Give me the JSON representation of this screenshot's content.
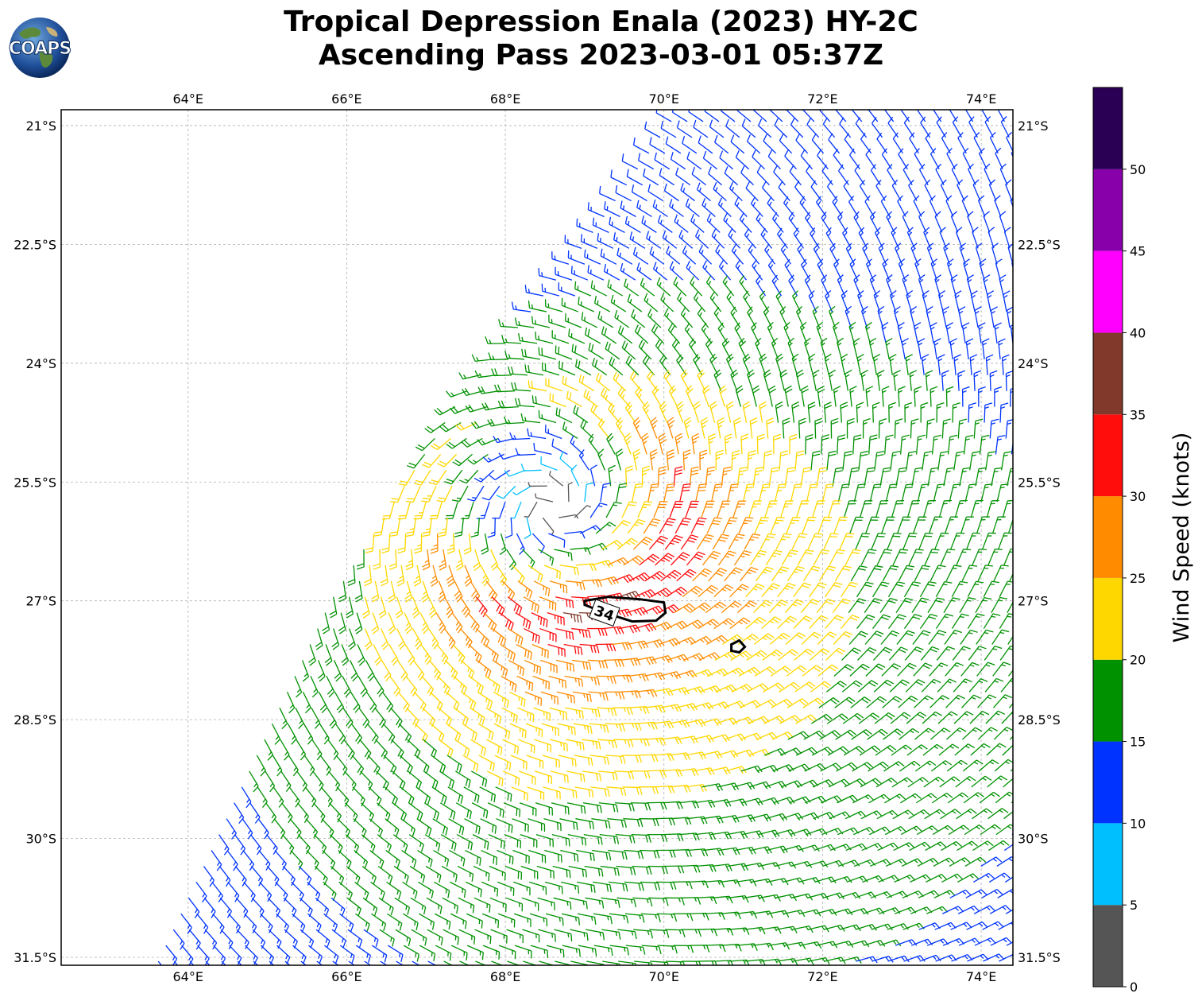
{
  "title": {
    "line1": "Tropical Depression Enala (2023) HY-2C",
    "line2": "Ascending Pass 2023-03-01 05:37Z"
  },
  "logo": {
    "text": "COAPS",
    "icon": "globe-icon"
  },
  "map": {
    "lon_range": [
      62.4,
      74.4
    ],
    "lat_range": [
      -31.6,
      -20.8
    ],
    "lon_ticks": [
      {
        "v": 64,
        "label": "64°E"
      },
      {
        "v": 66,
        "label": "66°E"
      },
      {
        "v": 68,
        "label": "68°E"
      },
      {
        "v": 70,
        "label": "70°E"
      },
      {
        "v": 72,
        "label": "72°E"
      },
      {
        "v": 74,
        "label": "74°E"
      }
    ],
    "lat_ticks": [
      {
        "v": -21,
        "label": "21°S"
      },
      {
        "v": -22.5,
        "label": "22.5°S"
      },
      {
        "v": -24,
        "label": "24°S"
      },
      {
        "v": -25.5,
        "label": "25.5°S"
      },
      {
        "v": -27,
        "label": "27°S"
      },
      {
        "v": -28.5,
        "label": "28.5°S"
      },
      {
        "v": -30,
        "label": "30°S"
      },
      {
        "v": -31.5,
        "label": "31.5°S"
      }
    ],
    "gridlines": true,
    "storm_center": {
      "lon": 68.6,
      "lat": -25.8
    },
    "swath_west_edge": [
      [
        70.2,
        -20.8
      ],
      [
        69.0,
        -22.5
      ],
      [
        67.4,
        -24.5
      ],
      [
        65.8,
        -27.0
      ],
      [
        63.6,
        -31.6
      ]
    ],
    "contour_34kt": {
      "label": "34",
      "polygons": [
        [
          [
            69.0,
            -27.0
          ],
          [
            69.3,
            -26.95
          ],
          [
            69.7,
            -26.98
          ],
          [
            70.0,
            -27.02
          ],
          [
            70.02,
            -27.15
          ],
          [
            69.9,
            -27.25
          ],
          [
            69.6,
            -27.26
          ],
          [
            69.25,
            -27.15
          ],
          [
            69.0,
            -27.05
          ]
        ],
        [
          [
            70.85,
            -27.55
          ],
          [
            70.95,
            -27.5
          ],
          [
            71.02,
            -27.58
          ],
          [
            70.95,
            -27.65
          ],
          [
            70.85,
            -27.63
          ]
        ]
      ]
    }
  },
  "colorbar": {
    "label": "Wind Speed (knots)",
    "bins": [
      {
        "from": 0,
        "to": 5,
        "color": "#555555"
      },
      {
        "from": 5,
        "to": 10,
        "color": "#00bfff"
      },
      {
        "from": 10,
        "to": 15,
        "color": "#0033ff"
      },
      {
        "from": 15,
        "to": 20,
        "color": "#009100"
      },
      {
        "from": 20,
        "to": 25,
        "color": "#ffd700"
      },
      {
        "from": 25,
        "to": 30,
        "color": "#ff8c00"
      },
      {
        "from": 30,
        "to": 35,
        "color": "#ff0d0d"
      },
      {
        "from": 35,
        "to": 40,
        "color": "#80392a"
      },
      {
        "from": 40,
        "to": 45,
        "color": "#ff00ff"
      },
      {
        "from": 45,
        "to": 50,
        "color": "#8800aa"
      },
      {
        "from": 50,
        "to": 55,
        "color": "#2a0055"
      }
    ],
    "tick_labels": [
      "0",
      "5",
      "10",
      "15",
      "20",
      "25",
      "30",
      "35",
      "40",
      "45",
      "50"
    ]
  }
}
